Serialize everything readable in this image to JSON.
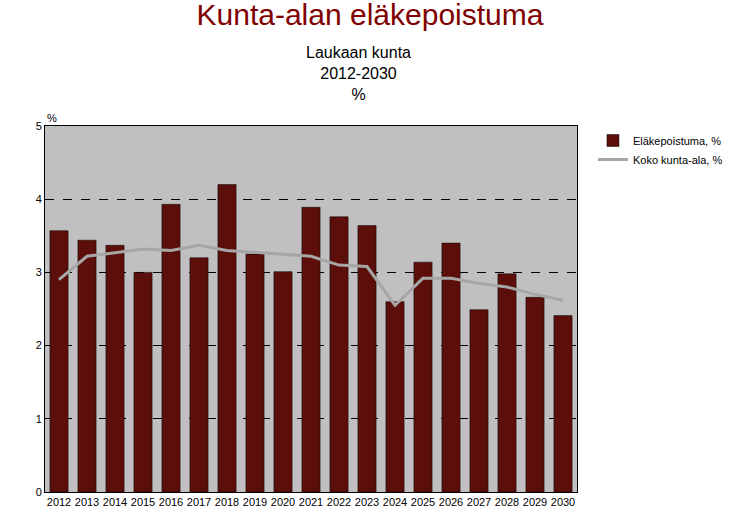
{
  "chart_data": {
    "type": "bar",
    "title": "Kunta-alan eläkepoistuma",
    "subtitle": [
      "Laukaan kunta",
      "2012-2030",
      "%"
    ],
    "ylabel": "%",
    "categories": [
      "2012",
      "2013",
      "2014",
      "2015",
      "2016",
      "2017",
      "2018",
      "2019",
      "2020",
      "2021",
      "2022",
      "2023",
      "2024",
      "2025",
      "2026",
      "2027",
      "2028",
      "2029",
      "2030"
    ],
    "series": [
      {
        "name": "Eläkepoistuma, %",
        "type": "bar",
        "color": "#5c0f0a",
        "values": [
          3.57,
          3.44,
          3.37,
          3.0,
          3.93,
          3.2,
          4.2,
          3.25,
          3.01,
          3.89,
          3.76,
          3.64,
          2.6,
          3.14,
          3.4,
          2.49,
          2.98,
          2.66,
          2.41
        ]
      },
      {
        "name": "Koko kunta-ala, %",
        "type": "line",
        "color": "#a6a6a6",
        "values": [
          2.9,
          3.22,
          3.27,
          3.32,
          3.3,
          3.37,
          3.3,
          3.27,
          3.25,
          3.22,
          3.1,
          3.08,
          2.55,
          2.92,
          2.92,
          2.85,
          2.8,
          2.7,
          2.62
        ]
      }
    ],
    "ylim": [
      0,
      5
    ],
    "yticks": [
      0,
      1,
      2,
      3,
      4,
      5
    ],
    "grid": true,
    "legend": "top-right"
  }
}
